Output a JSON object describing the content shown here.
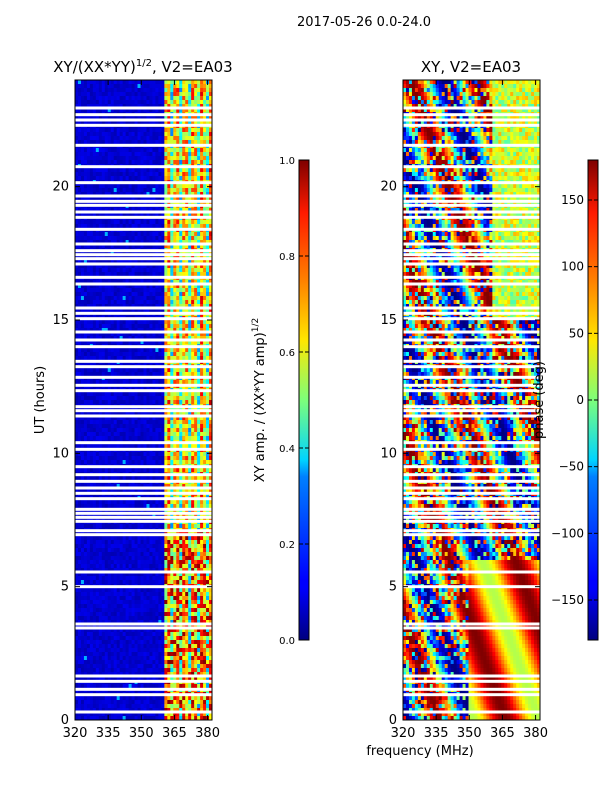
{
  "suptitle": "2017-05-26 0.0-24.0",
  "chart_data": [
    {
      "type": "heatmap",
      "title_main": "XY/(XX*YY)",
      "title_sup": "1/2",
      "title_suffix": ", V2=EA03",
      "xlabel": "",
      "ylabel": "UT (hours)",
      "xlim": [
        320,
        382
      ],
      "ylim": [
        0,
        24
      ],
      "xticks": [
        320,
        335,
        350,
        365,
        380
      ],
      "yticks": [
        0,
        5,
        10,
        15,
        20
      ],
      "colormap": "jet",
      "colorbar": {
        "label_main": "XY amp. / (XX*YY amp)",
        "label_sup": "1/2",
        "range": [
          0.0,
          1.0
        ],
        "ticks": [
          "0.0",
          "0.2",
          "0.4",
          "0.6",
          "0.8",
          "1.0"
        ]
      },
      "description_values": {
        "background_value": 0.03,
        "active_band_mhz": [
          361,
          382
        ],
        "active_band_values": [
          0.3,
          0.9
        ]
      }
    },
    {
      "type": "heatmap",
      "title_main": "XY, V2=EA03",
      "xlabel": "frequency (MHz)",
      "ylabel": "",
      "xlim": [
        320,
        382
      ],
      "ylim": [
        0,
        24
      ],
      "xticks": [
        320,
        335,
        350,
        365,
        380
      ],
      "yticks": [
        0,
        5,
        10,
        15,
        20
      ],
      "colormap": "jet",
      "colorbar": {
        "label_main": "phase (deg)",
        "range": [
          -180,
          180
        ],
        "ticks": [
          "−150",
          "−100",
          "−50",
          "0",
          "50",
          "100",
          "150"
        ]
      }
    }
  ],
  "flagged_rows_hours": [
    0.3,
    0.95,
    1.15,
    1.45,
    1.65,
    3.45,
    3.6,
    5.0,
    5.55,
    6.95,
    7.1,
    7.45,
    7.6,
    7.75,
    7.9,
    8.3,
    8.5,
    8.7,
    8.95,
    9.2,
    9.5,
    10.15,
    10.4,
    11.4,
    11.6,
    11.75,
    12.35,
    12.55,
    12.85,
    13.25,
    13.45,
    14.0,
    14.25,
    14.55,
    15.05,
    15.25,
    15.45,
    16.35,
    16.6,
    17.1,
    17.3,
    17.45,
    17.6,
    17.85,
    18.4,
    18.85,
    19.05,
    19.3,
    19.45,
    19.65,
    20.15,
    20.75,
    21.55,
    22.3,
    22.5,
    22.7,
    22.95
  ]
}
